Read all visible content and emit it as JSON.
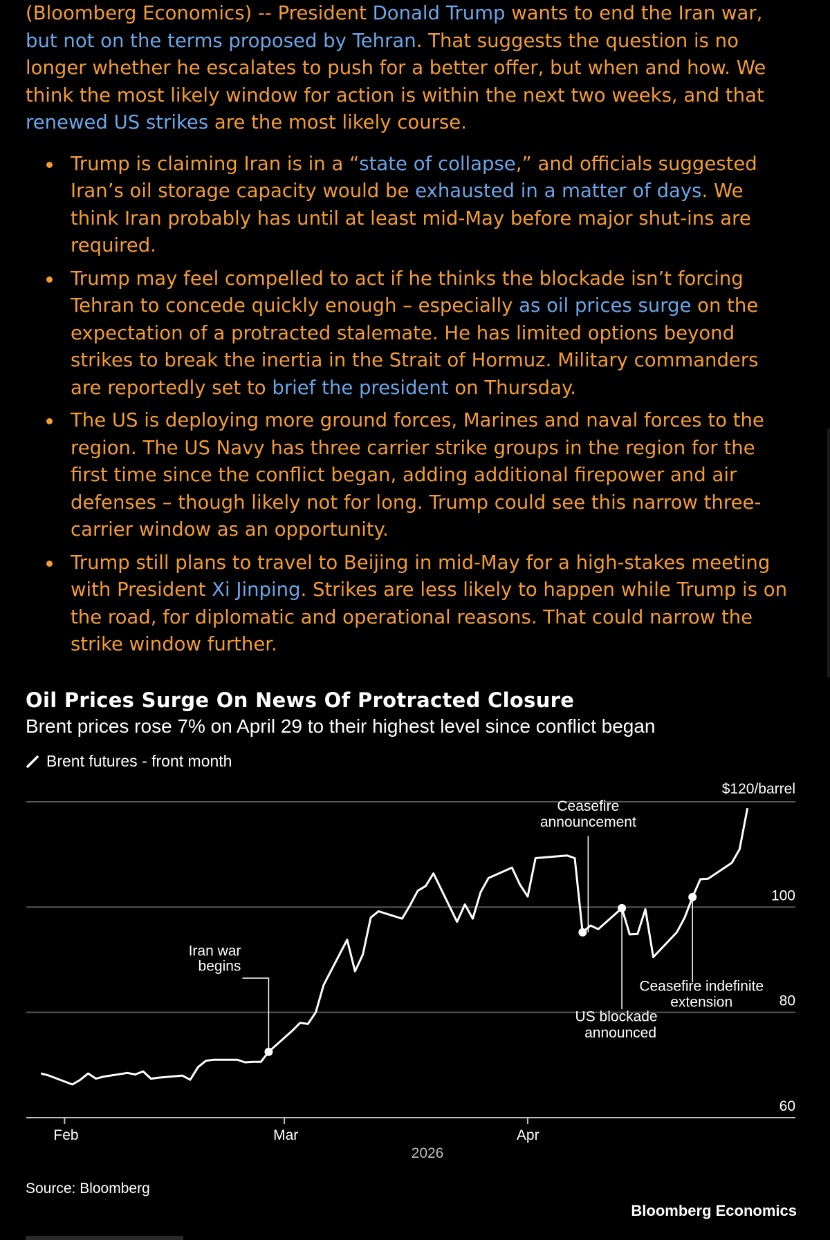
{
  "article": {
    "intro": [
      {
        "text": "(Bloomberg Economics) -- President ",
        "link": false
      },
      {
        "text": "Donald Trump",
        "link": true
      },
      {
        "text": " wants to end the Iran war, ",
        "link": false
      },
      {
        "text": "but not on the terms proposed by Tehran",
        "link": true
      },
      {
        "text": ". That suggests the question is no longer whether he escalates to push for a better offer, but when and how. We think the most likely window for action is within the next two weeks, and that ",
        "link": false
      },
      {
        "text": "renewed US strikes",
        "link": true
      },
      {
        "text": " are the most likely course.",
        "link": false
      }
    ],
    "bullets": [
      [
        {
          "text": "Trump is claiming Iran is in a “",
          "link": false
        },
        {
          "text": "state of collapse",
          "link": true
        },
        {
          "text": ",” and officials suggested Iran’s oil storage capacity would be ",
          "link": false
        },
        {
          "text": "exhausted in a matter of days",
          "link": true
        },
        {
          "text": ". We think Iran probably has until at least mid-May before major shut-ins are required.",
          "link": false
        }
      ],
      [
        {
          "text": "Trump may feel compelled to act if he thinks the blockade isn’t forcing Tehran to concede quickly enough – especially ",
          "link": false
        },
        {
          "text": "as oil prices surge",
          "link": true
        },
        {
          "text": " on the expectation of a protracted stalemate. He has limited options beyond strikes to break the inertia in the Strait of Hormuz. Military commanders are reportedly set to ",
          "link": false
        },
        {
          "text": "brief the president",
          "link": true
        },
        {
          "text": " on Thursday.",
          "link": false
        }
      ],
      [
        {
          "text": "The US is deploying more ground forces, Marines and naval forces to the region. The US Navy has three carrier strike groups in the region for the first time since the conflict began, adding additional firepower and air defenses – though likely not for long. Trump could see this narrow three-carrier window as an opportunity.",
          "link": false
        }
      ],
      [
        {
          "text": "Trump still plans to travel to Beijing in mid-May for a high-stakes meeting with President ",
          "link": false
        },
        {
          "text": "Xi Jinping",
          "link": true
        },
        {
          "text": ". Strikes are less likely to happen while Trump is on the road, for diplomatic and operational reasons. That could narrow the strike window further.",
          "link": false
        }
      ]
    ]
  },
  "chart_data": {
    "type": "line",
    "title": "Oil Prices Surge On News Of Protracted Closure",
    "subtitle": "Brent prices rose 7% on April 29 to their highest level since conflict began",
    "legend": "Brent futures - front month",
    "y_unit_label": "$120/barrel",
    "ylim": [
      60,
      120
    ],
    "yticks": [
      60,
      80,
      100
    ],
    "xlim": [
      "2026-01-28",
      "2026-04-30"
    ],
    "xticks": [
      {
        "date": "2026-02-01",
        "label": "Feb"
      },
      {
        "date": "2026-03-01",
        "label": "Mar"
      },
      {
        "date": "2026-04-01",
        "label": "Apr"
      }
    ],
    "year_label": "2026",
    "grid": true,
    "series": [
      {
        "color": "#ffffff",
        "points": [
          [
            "2026-01-29",
            68.4
          ],
          [
            "2026-01-30",
            68.0
          ],
          [
            "2026-02-02",
            66.3
          ],
          [
            "2026-02-03",
            67.2
          ],
          [
            "2026-02-04",
            68.4
          ],
          [
            "2026-02-05",
            67.4
          ],
          [
            "2026-02-06",
            67.8
          ],
          [
            "2026-02-09",
            68.5
          ],
          [
            "2026-02-10",
            68.2
          ],
          [
            "2026-02-11",
            68.8
          ],
          [
            "2026-02-12",
            67.4
          ],
          [
            "2026-02-13",
            67.6
          ],
          [
            "2026-02-16",
            68.0
          ],
          [
            "2026-02-17",
            67.2
          ],
          [
            "2026-02-18",
            69.6
          ],
          [
            "2026-02-19",
            70.8
          ],
          [
            "2026-02-20",
            71.0
          ],
          [
            "2026-02-23",
            71.0
          ],
          [
            "2026-02-24",
            70.5
          ],
          [
            "2026-02-25",
            70.6
          ],
          [
            "2026-02-26",
            70.6
          ],
          [
            "2026-02-27",
            72.5
          ],
          [
            "2026-03-02",
            76.5
          ],
          [
            "2026-03-03",
            78.0
          ],
          [
            "2026-03-04",
            77.8
          ],
          [
            "2026-03-05",
            80.0
          ],
          [
            "2026-03-06",
            85.2
          ],
          [
            "2026-03-09",
            93.8
          ],
          [
            "2026-03-10",
            87.8
          ],
          [
            "2026-03-11",
            91.0
          ],
          [
            "2026-03-12",
            98.0
          ],
          [
            "2026-03-13",
            99.2
          ],
          [
            "2026-03-16",
            97.8
          ],
          [
            "2026-03-17",
            100.3
          ],
          [
            "2026-03-18",
            103.1
          ],
          [
            "2026-03-19",
            104.0
          ],
          [
            "2026-03-20",
            106.4
          ],
          [
            "2026-03-23",
            97.2
          ],
          [
            "2026-03-24",
            100.5
          ],
          [
            "2026-03-25",
            97.8
          ],
          [
            "2026-03-26",
            102.8
          ],
          [
            "2026-03-27",
            105.5
          ],
          [
            "2026-03-30",
            107.5
          ],
          [
            "2026-03-31",
            104.3
          ],
          [
            "2026-04-01",
            102.0
          ],
          [
            "2026-04-02",
            109.3
          ],
          [
            "2026-04-06",
            109.8
          ],
          [
            "2026-04-07",
            109.3
          ],
          [
            "2026-04-08",
            95.2
          ],
          [
            "2026-04-09",
            96.5
          ],
          [
            "2026-04-10",
            95.8
          ],
          [
            "2026-04-13",
            99.8
          ],
          [
            "2026-04-14",
            94.8
          ],
          [
            "2026-04-15",
            94.9
          ],
          [
            "2026-04-16",
            99.6
          ],
          [
            "2026-04-17",
            90.5
          ],
          [
            "2026-04-20",
            95.2
          ],
          [
            "2026-04-21",
            98.0
          ],
          [
            "2026-04-22",
            101.9
          ],
          [
            "2026-04-23",
            105.3
          ],
          [
            "2026-04-24",
            105.4
          ],
          [
            "2026-04-27",
            108.4
          ],
          [
            "2026-04-28",
            111.0
          ],
          [
            "2026-04-29",
            118.8
          ]
        ]
      }
    ],
    "markers": [
      {
        "date": "2026-02-27",
        "value": 72.5
      },
      {
        "date": "2026-04-08",
        "value": 95.2
      },
      {
        "date": "2026-04-13",
        "value": 99.8
      },
      {
        "date": "2026-04-22",
        "value": 101.9
      }
    ],
    "annotations": [
      {
        "text": [
          "Iran war",
          "begins"
        ]
      },
      {
        "text": [
          "Ceasefire",
          "announcement"
        ]
      },
      {
        "text": [
          "US blockade",
          "announced"
        ]
      },
      {
        "text": [
          "Ceasefire indefinite",
          "extension"
        ]
      }
    ],
    "source": "Source: Bloomberg",
    "brand": "Bloomberg Economics"
  }
}
